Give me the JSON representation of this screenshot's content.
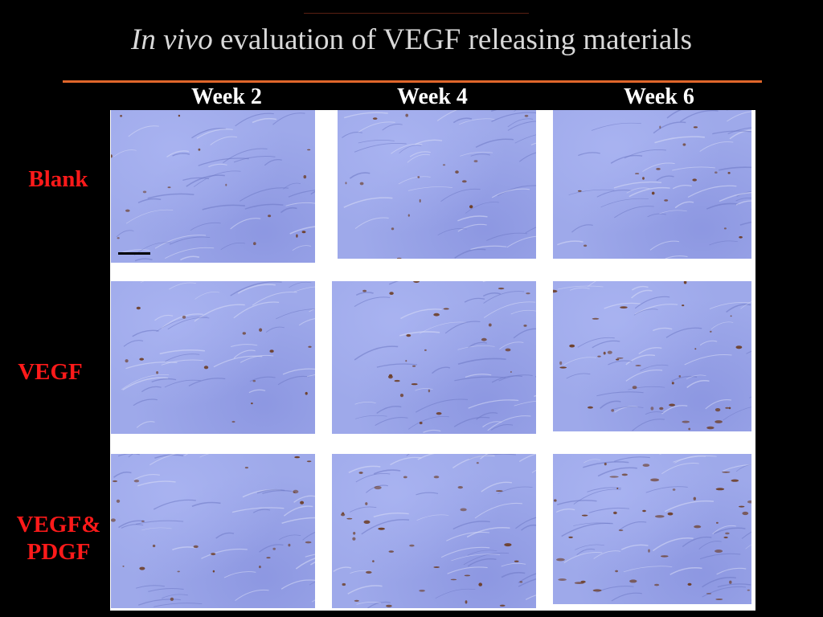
{
  "slide": {
    "title_italic": "In vivo",
    "title_rest": " evaluation of VEGF releasing materials"
  },
  "columns": [
    "Week 2",
    "Week 4",
    "Week 6"
  ],
  "rows": [
    {
      "label_line1": "Blank",
      "label_line2": ""
    },
    {
      "label_line1": "VEGF",
      "label_line2": ""
    },
    {
      "label_line1": "VEGF&",
      "label_line2": "PDGF"
    }
  ],
  "colors": {
    "background": "#000000",
    "title_text": "#d9d9d9",
    "accent_rule": "#e0662b",
    "row_label": "#ff1a1a",
    "column_header": "#ffffff",
    "tissue_stain": "#9ea9ea",
    "vessel_stain": "#6b3a20"
  },
  "panels": [
    {
      "id": "blank-week2",
      "vessel_density": 1
    },
    {
      "id": "blank-week4",
      "vessel_density": 1
    },
    {
      "id": "blank-week6",
      "vessel_density": 1
    },
    {
      "id": "vegf-week2",
      "vessel_density": 1
    },
    {
      "id": "vegf-week4",
      "vessel_density": 2
    },
    {
      "id": "vegf-week6",
      "vessel_density": 3
    },
    {
      "id": "vegf-pdgf-week2",
      "vessel_density": 2
    },
    {
      "id": "vegf-pdgf-week4",
      "vessel_density": 3
    },
    {
      "id": "vegf-pdgf-week6",
      "vessel_density": 4
    }
  ]
}
